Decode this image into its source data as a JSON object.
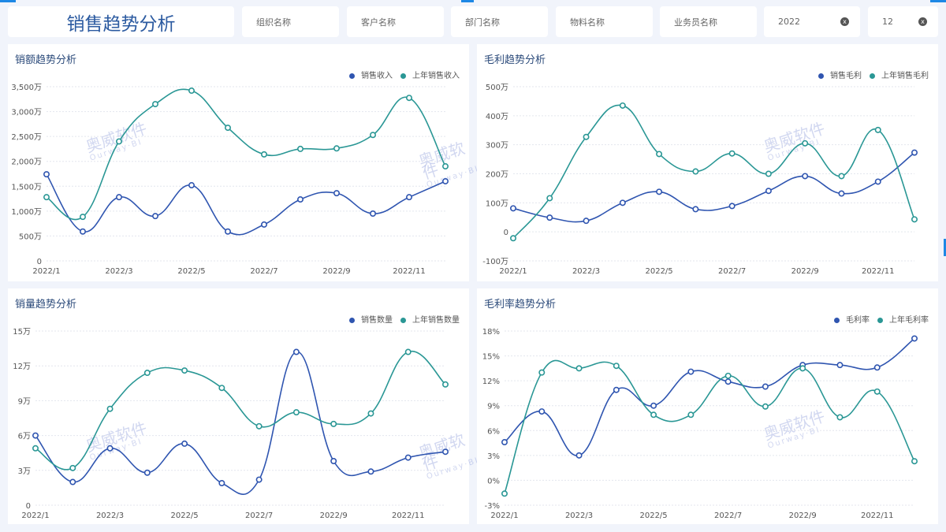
{
  "header": {
    "title": "销售趋势分析",
    "filters": [
      {
        "placeholder": "组织名称"
      },
      {
        "placeholder": "客户名称"
      },
      {
        "placeholder": "部门名称"
      },
      {
        "placeholder": "物料名称"
      },
      {
        "placeholder": "业务员名称"
      },
      {
        "value": "2022",
        "clear": "x"
      },
      {
        "value": "12",
        "clear": "x"
      }
    ]
  },
  "watermark": {
    "text": "奥威软件",
    "sub": "Ourway·BI"
  },
  "colors": {
    "current": "#2f55b0",
    "last_year": "#2a9795"
  },
  "chart_data": [
    {
      "type": "line",
      "title": "销额趋势分析",
      "categories": [
        "2022/1",
        "2022/2",
        "2022/3",
        "2022/4",
        "2022/5",
        "2022/6",
        "2022/7",
        "2022/8",
        "2022/9",
        "2022/10",
        "2022/11",
        "2022/12"
      ],
      "xticks": [
        "2022/1",
        "2022/3",
        "2022/5",
        "2022/7",
        "2022/9",
        "2022/11"
      ],
      "ylim": [
        0,
        3500
      ],
      "yticks": [
        "0",
        "500万",
        "1,000万",
        "1,500万",
        "2,000万",
        "2,500万",
        "3,000万",
        "3,500万"
      ],
      "ystep": 500,
      "legend": "top-right",
      "grid": true,
      "series": [
        {
          "name": "销售收入",
          "values": [
            1740,
            590,
            1280,
            900,
            1520,
            590,
            730,
            1235,
            1360,
            950,
            1280,
            1600
          ]
        },
        {
          "name": "上年销售收入",
          "values": [
            1280,
            885,
            2400,
            3150,
            3420,
            2675,
            2140,
            2250,
            2260,
            2530,
            3275,
            1900
          ]
        }
      ]
    },
    {
      "type": "line",
      "title": "毛利趋势分析",
      "categories": [
        "2022/1",
        "2022/2",
        "2022/3",
        "2022/4",
        "2022/5",
        "2022/6",
        "2022/7",
        "2022/8",
        "2022/9",
        "2022/10",
        "2022/11",
        "2022/12"
      ],
      "xticks": [
        "2022/1",
        "2022/3",
        "2022/5",
        "2022/7",
        "2022/9",
        "2022/11"
      ],
      "ylim": [
        -100,
        500
      ],
      "yticks": [
        "-100万",
        "0",
        "100万",
        "200万",
        "300万",
        "400万",
        "500万"
      ],
      "ystep": 100,
      "legend": "top-right",
      "grid": true,
      "series": [
        {
          "name": "销售毛利",
          "values": [
            81,
            49,
            38,
            100,
            138,
            78,
            89,
            141,
            192,
            132,
            173,
            273
          ]
        },
        {
          "name": "上年销售毛利",
          "values": [
            -22,
            116,
            327,
            435,
            268,
            208,
            270,
            200,
            305,
            192,
            351,
            43
          ]
        }
      ]
    },
    {
      "type": "line",
      "title": "销量趋势分析",
      "categories": [
        "2022/1",
        "2022/2",
        "2022/3",
        "2022/4",
        "2022/5",
        "2022/6",
        "2022/7",
        "2022/8",
        "2022/9",
        "2022/10",
        "2022/11",
        "2022/12"
      ],
      "xticks": [
        "2022/1",
        "2022/3",
        "2022/5",
        "2022/7",
        "2022/9",
        "2022/11"
      ],
      "ylim": [
        0,
        15
      ],
      "yticks": [
        "0",
        "3万",
        "6万",
        "9万",
        "12万",
        "15万"
      ],
      "ystep": 3,
      "legend": "top-right",
      "grid": true,
      "series": [
        {
          "name": "销售数量",
          "values": [
            6.0,
            2.0,
            4.9,
            2.8,
            5.3,
            1.9,
            2.2,
            13.2,
            3.8,
            2.9,
            4.1,
            4.6
          ]
        },
        {
          "name": "上年销售数量",
          "values": [
            4.9,
            3.2,
            8.3,
            11.4,
            11.6,
            10.1,
            6.8,
            8.0,
            7.0,
            7.9,
            13.2,
            10.4
          ]
        }
      ]
    },
    {
      "type": "line",
      "title": "毛利率趋势分析",
      "categories": [
        "2022/1",
        "2022/2",
        "2022/3",
        "2022/4",
        "2022/5",
        "2022/6",
        "2022/7",
        "2022/8",
        "2022/9",
        "2022/10",
        "2022/11",
        "2022/12"
      ],
      "xticks": [
        "2022/1",
        "2022/3",
        "2022/5",
        "2022/7",
        "2022/9",
        "2022/11"
      ],
      "ylim": [
        -3,
        18
      ],
      "yticks": [
        "-3%",
        "0%",
        "3%",
        "6%",
        "9%",
        "12%",
        "15%",
        "18%"
      ],
      "ystep": 3,
      "legend": "top-right",
      "grid": true,
      "series": [
        {
          "name": "毛利率",
          "values": [
            4.6,
            8.3,
            3.0,
            10.9,
            9.0,
            13.1,
            11.9,
            11.3,
            13.9,
            13.9,
            13.6,
            17.1
          ]
        },
        {
          "name": "上年毛利率",
          "values": [
            -1.6,
            13.0,
            13.5,
            13.8,
            7.9,
            7.9,
            12.6,
            8.9,
            13.5,
            7.6,
            10.7,
            2.3
          ]
        }
      ]
    }
  ]
}
